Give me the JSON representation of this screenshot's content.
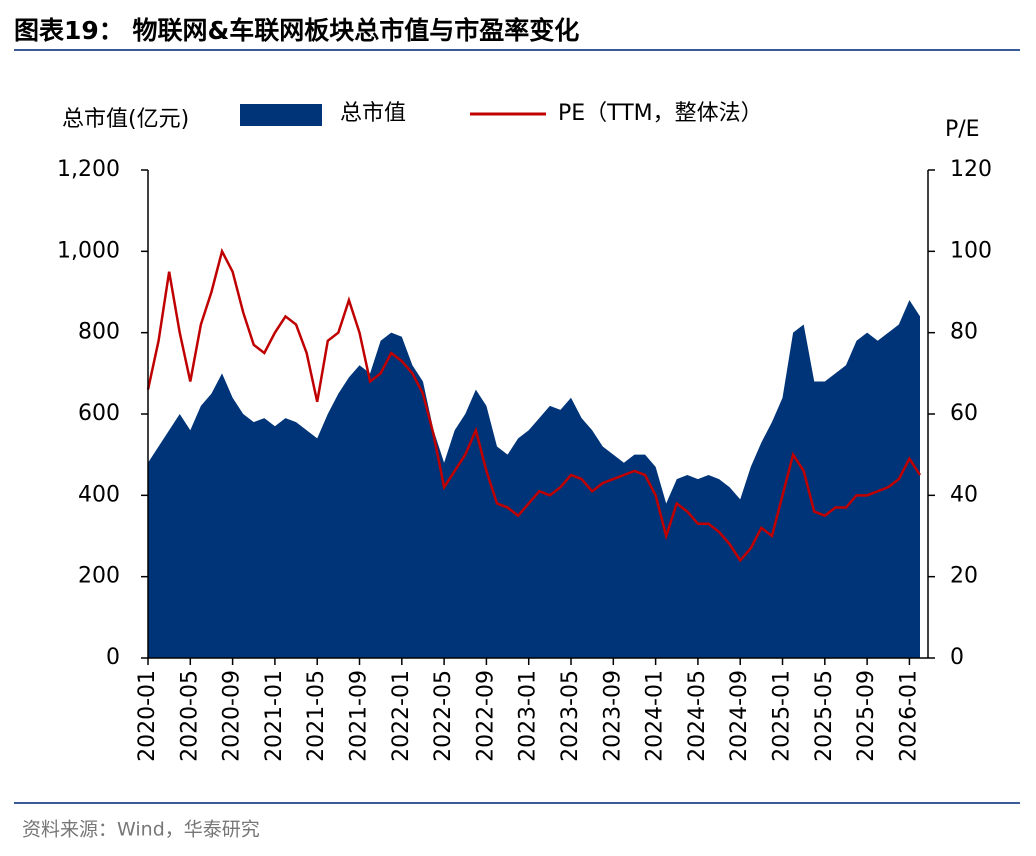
{
  "chart_data": {
    "type": "combo",
    "title": "图表19： 物联网&车联网板块总市值与市盈率变化",
    "y_label": "总市值(亿元)",
    "y2_label": "P/E",
    "source": "资料来源：Wind，华泰研究",
    "categories": [
      "2020-01",
      null,
      null,
      null,
      "2020-05",
      null,
      null,
      null,
      "2020-09",
      null,
      null,
      null,
      "2021-01",
      null,
      null,
      null,
      "2021-05",
      null,
      null,
      null,
      "2021-09",
      null,
      null,
      null,
      "2022-01",
      null,
      null,
      null,
      "2022-05",
      null,
      null,
      null,
      "2022-09",
      null,
      null,
      null,
      "2023-01",
      null,
      null,
      null,
      "2023-05",
      null,
      null,
      null,
      "2023-09",
      null,
      null,
      null,
      "2024-01",
      null,
      null,
      null,
      "2024-05",
      null,
      null,
      null,
      "2024-09",
      null,
      null,
      null,
      "2025-01",
      null,
      null,
      null,
      "2025-05",
      null,
      null,
      null,
      "2025-09",
      null,
      null,
      null,
      "2026-01",
      null
    ],
    "series": [
      {
        "name": "总市值",
        "type": "area",
        "color": "#003478",
        "values": [
          480,
          520,
          560,
          600,
          560,
          620,
          650,
          700,
          640,
          600,
          580,
          590,
          570,
          590,
          580,
          560,
          540,
          600,
          650,
          690,
          720,
          700,
          780,
          800,
          790,
          720,
          680,
          560,
          480,
          560,
          600,
          660,
          620,
          520,
          500,
          540,
          560,
          590,
          620,
          610,
          640,
          590,
          560,
          520,
          500,
          480,
          500,
          500,
          470,
          380,
          440,
          450,
          440,
          450,
          440,
          420,
          390,
          470,
          530,
          580,
          640,
          800,
          820,
          680,
          680,
          700,
          720,
          780,
          800,
          780,
          800,
          820,
          880,
          840
        ]
      },
      {
        "name": "PE（TTM，整体法）",
        "type": "line",
        "axis": "y2",
        "color": "#c00000",
        "values": [
          66,
          78,
          95,
          80,
          68,
          82,
          90,
          100,
          95,
          85,
          77,
          75,
          80,
          84,
          82,
          75,
          63,
          78,
          80,
          88,
          80,
          68,
          70,
          75,
          73,
          70,
          65,
          55,
          42,
          46,
          50,
          56,
          46,
          38,
          37,
          35,
          38,
          41,
          40,
          42,
          45,
          44,
          41,
          43,
          44,
          45,
          46,
          45,
          40,
          30,
          38,
          36,
          33,
          33,
          31,
          28,
          24,
          27,
          32,
          30,
          40,
          50,
          46,
          36,
          35,
          37,
          37,
          40,
          40,
          41,
          42,
          44,
          49,
          45
        ]
      }
    ],
    "ylim": [
      0,
      1200
    ],
    "yticks": [
      0,
      200,
      400,
      600,
      800,
      {
        "value": 1000,
        "label": "1,000"
      },
      {
        "value": 1200,
        "label": "1,200"
      }
    ],
    "y2lim": [
      0,
      120
    ],
    "y2ticks": [
      0,
      20,
      40,
      60,
      80,
      100,
      120
    ]
  }
}
